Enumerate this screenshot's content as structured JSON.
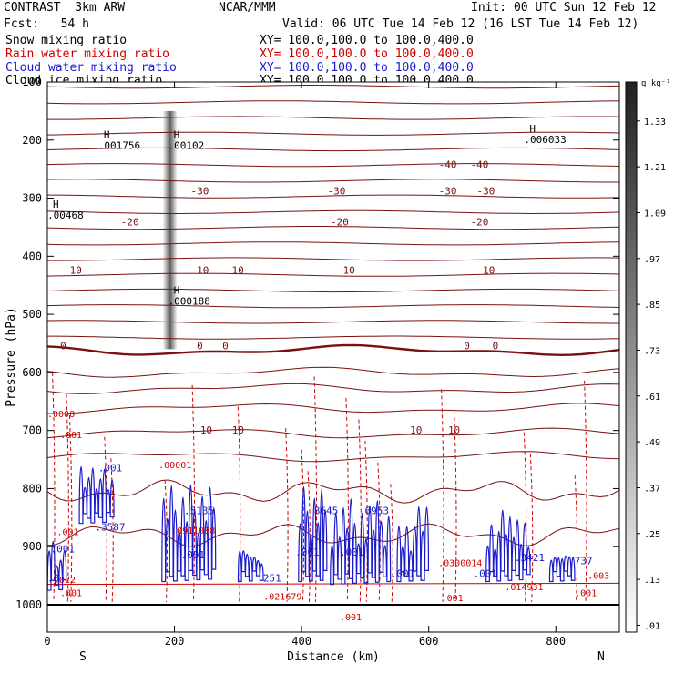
{
  "header": {
    "model": "CONTRAST  3km ARW",
    "org": "NCAR/MMM",
    "init": "Init: 00 UTC Sun 12 Feb 12",
    "fcst": "Fcst:   54 h",
    "valid": "Valid: 06 UTC Tue 14 Feb 12 (16 LST Tue 14 Feb 12)"
  },
  "fields": [
    {
      "label": "Snow mixing ratio",
      "xy": "XY= 100.0,100.0 to 100.0,400.0",
      "color": "#000000"
    },
    {
      "label": "Rain water mixing ratio",
      "xy": "XY= 100.0,100.0 to 100.0,400.0",
      "color": "#d00000"
    },
    {
      "label": "Cloud water mixing ratio",
      "xy": "XY= 100.0,100.0 to 100.0,400.0",
      "color": "#0000cc"
    },
    {
      "label": "Cloud ice mixing ratio",
      "xy": "XY= 100.0,100.0 to 100.0,400.0",
      "color": "#000000"
    }
  ],
  "colorbar": {
    "unit": "g kg⁻¹",
    "ticks": [
      "1.33",
      "1.21",
      "1.09",
      ".97",
      ".85",
      ".73",
      ".61",
      ".49",
      ".37",
      ".25",
      ".13",
      ".01"
    ]
  },
  "colors": {
    "temperature": "#7a1010",
    "rain": "#d00000",
    "cloud_water": "#1a1acc",
    "frame": "#000000"
  },
  "chart_data": {
    "type": "cross-section contour",
    "xlabel": "Distance (km)",
    "ylabel": "Pressure (hPa)",
    "xlim": [
      0,
      900
    ],
    "ylim": [
      1000,
      100
    ],
    "x_ticks": [
      0,
      200,
      400,
      600,
      800
    ],
    "y_ticks": [
      100,
      200,
      300,
      400,
      500,
      600,
      700,
      800,
      900,
      1000
    ],
    "direction_labels": {
      "left": "S",
      "right": "N"
    },
    "temperature_labels": [
      {
        "text": "-40",
        "x": 630,
        "p": 248
      },
      {
        "text": "-40",
        "x": 680,
        "p": 248
      },
      {
        "text": "-30",
        "x": 240,
        "p": 294
      },
      {
        "text": "-30",
        "x": 455,
        "p": 294
      },
      {
        "text": "-30",
        "x": 630,
        "p": 294
      },
      {
        "text": "-30",
        "x": 690,
        "p": 294
      },
      {
        "text": "-20",
        "x": 130,
        "p": 347
      },
      {
        "text": "-20",
        "x": 460,
        "p": 347
      },
      {
        "text": "-20",
        "x": 680,
        "p": 347
      },
      {
        "text": "-10",
        "x": 40,
        "p": 430
      },
      {
        "text": "-10",
        "x": 240,
        "p": 430
      },
      {
        "text": "-10",
        "x": 295,
        "p": 430
      },
      {
        "text": "-10",
        "x": 470,
        "p": 430
      },
      {
        "text": "-10",
        "x": 690,
        "p": 430
      },
      {
        "text": "0",
        "x": 25,
        "p": 560
      },
      {
        "text": "0",
        "x": 240,
        "p": 560
      },
      {
        "text": "0",
        "x": 280,
        "p": 560
      },
      {
        "text": "0",
        "x": 660,
        "p": 560
      },
      {
        "text": "0",
        "x": 705,
        "p": 560
      },
      {
        "text": "10",
        "x": 250,
        "p": 705
      },
      {
        "text": "10",
        "x": 300,
        "p": 705
      },
      {
        "text": "10",
        "x": 580,
        "p": 705
      },
      {
        "text": "10",
        "x": 640,
        "p": 705
      }
    ],
    "snow_maxima": [
      {
        "text": ".001756",
        "x": 80,
        "p": 215
      },
      {
        "text": ".00102",
        "x": 190,
        "p": 215
      },
      {
        "text": ".00468",
        "x": 0,
        "p": 335
      },
      {
        "text": ".000188",
        "x": 190,
        "p": 483
      },
      {
        "text": ".006033",
        "x": 750,
        "p": 205
      }
    ],
    "rain_labels": [
      {
        "text": ".0008",
        "x": 0,
        "p": 677
      },
      {
        "text": ".001",
        "x": 20,
        "p": 713
      },
      {
        "text": ".00001",
        "x": 175,
        "p": 765
      },
      {
        "text": ".0911088",
        "x": 195,
        "p": 878
      },
      {
        "text": ".001",
        "x": 15,
        "p": 880
      },
      {
        "text": ".022",
        "x": 10,
        "p": 962
      },
      {
        "text": ".001",
        "x": 20,
        "p": 985
      },
      {
        "text": ".021679",
        "x": 340,
        "p": 991
      },
      {
        "text": ".001",
        "x": 460,
        "p": 1027
      },
      {
        "text": ".0300014",
        "x": 615,
        "p": 933
      },
      {
        "text": ".001",
        "x": 620,
        "p": 994
      },
      {
        "text": ".014931",
        "x": 720,
        "p": 975
      },
      {
        "text": ".001",
        "x": 830,
        "p": 985
      },
      {
        "text": ".003",
        "x": 850,
        "p": 955
      }
    ],
    "cloud_labels": [
      {
        "text": ".001",
        "x": 80,
        "p": 770
      },
      {
        "text": ".3587",
        "x": 75,
        "p": 872
      },
      {
        "text": ".5135",
        "x": 215,
        "p": 844
      },
      {
        "text": ".001",
        "x": 210,
        "p": 920
      },
      {
        "text": ".251",
        "x": 330,
        "p": 960
      },
      {
        "text": ".8645",
        "x": 410,
        "p": 844
      },
      {
        "text": ".6953",
        "x": 490,
        "p": 844
      },
      {
        "text": ".001",
        "x": 390,
        "p": 915
      },
      {
        "text": ".001",
        "x": 460,
        "p": 915
      },
      {
        "text": ".001",
        "x": 540,
        "p": 952
      },
      {
        "text": ".001",
        "x": 670,
        "p": 952
      },
      {
        "text": ".3421",
        "x": 735,
        "p": 925
      },
      {
        "text": ".737",
        "x": 820,
        "p": 930
      },
      {
        "text": ".001",
        "x": 5,
        "p": 910
      },
      {
        "text": ".3",
        "x": 0,
        "p": 960
      }
    ],
    "cloud_cells": [
      {
        "x0": 50,
        "x1": 105,
        "p_top": 730,
        "p_bot": 860
      },
      {
        "x0": 180,
        "x1": 265,
        "p_top": 740,
        "p_bot": 960
      },
      {
        "x0": 300,
        "x1": 340,
        "p_top": 880,
        "p_bot": 960
      },
      {
        "x0": 395,
        "x1": 440,
        "p_top": 740,
        "p_bot": 960
      },
      {
        "x0": 445,
        "x1": 540,
        "p_top": 760,
        "p_bot": 965
      },
      {
        "x0": 550,
        "x1": 600,
        "p_top": 790,
        "p_bot": 960
      },
      {
        "x0": 690,
        "x1": 760,
        "p_top": 800,
        "p_bot": 960
      },
      {
        "x0": 790,
        "x1": 830,
        "p_top": 870,
        "p_bot": 960
      },
      {
        "x0": 0,
        "x1": 30,
        "p_top": 860,
        "p_bot": 975
      }
    ],
    "snow_column": {
      "x": 193,
      "p_top": 150,
      "p_bot": 560,
      "peak": 1.2
    }
  }
}
